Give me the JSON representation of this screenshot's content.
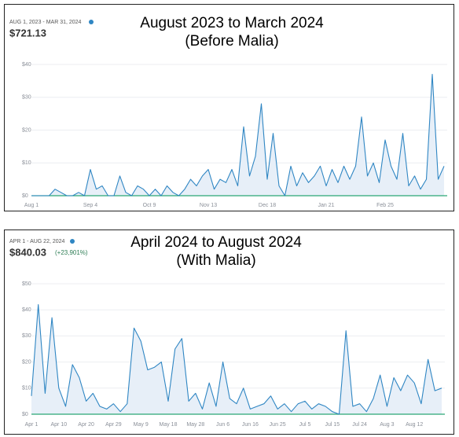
{
  "chart_data": [
    {
      "type": "area",
      "title": "August 2023 to March 2024",
      "subtitle": "(Before Malia)",
      "period": "AUG 1, 2023 - MAR 31, 2024",
      "total": "$721.13",
      "color": "#2f86c3",
      "grid": true,
      "categories": [
        "Aug 1",
        null,
        null,
        null,
        null,
        null,
        null,
        null,
        null,
        null,
        "Sep 4",
        null,
        null,
        null,
        null,
        null,
        null,
        null,
        null,
        null,
        "Oct 9",
        null,
        null,
        null,
        null,
        null,
        null,
        null,
        null,
        null,
        "Nov 13",
        null,
        null,
        null,
        null,
        null,
        null,
        null,
        null,
        null,
        "Dec 18",
        null,
        null,
        null,
        null,
        null,
        null,
        null,
        null,
        null,
        "Jan 21",
        null,
        null,
        null,
        null,
        null,
        null,
        null,
        null,
        null,
        "Feb 25",
        null,
        null,
        null,
        null,
        null,
        null,
        null,
        null,
        null,
        null
      ],
      "values": [
        0,
        0,
        0,
        0,
        2,
        1,
        0,
        0,
        1,
        0,
        8,
        2,
        3,
        0,
        0,
        6,
        1,
        0,
        3,
        2,
        0,
        2,
        0,
        3,
        1,
        0,
        2,
        5,
        3,
        6,
        8,
        2,
        5,
        4,
        8,
        3,
        21,
        6,
        12,
        28,
        5,
        19,
        3,
        0,
        9,
        3,
        7,
        4,
        6,
        9,
        3,
        8,
        4,
        9,
        5,
        9,
        24,
        6,
        10,
        4,
        17,
        9,
        5,
        19,
        3,
        6,
        2,
        5,
        37,
        5,
        9
      ],
      "ylim": [
        0,
        40
      ],
      "yticks": [
        {
          "value": 0,
          "label": "$0"
        },
        {
          "value": 10,
          "label": "$10"
        },
        {
          "value": 20,
          "label": "$20"
        },
        {
          "value": 30,
          "label": "$30"
        },
        {
          "value": 40,
          "label": "$40"
        }
      ]
    },
    {
      "type": "area",
      "title": "April 2024 to August 2024",
      "subtitle": "(With Malia)",
      "period": "APR 1 - AUG 22, 2024",
      "total": "$840.03",
      "change": "(+23,901%)",
      "color": "#2f86c3",
      "grid": true,
      "categories": [
        "Apr 1",
        null,
        null,
        null,
        "Apr 10",
        null,
        null,
        null,
        "Apr 20",
        null,
        null,
        null,
        "Apr 29",
        null,
        null,
        null,
        "May 9",
        null,
        null,
        null,
        "May 18",
        null,
        null,
        null,
        "May 28",
        null,
        null,
        null,
        "Jun 6",
        null,
        null,
        null,
        "Jun 16",
        null,
        null,
        null,
        "Jun 25",
        null,
        null,
        null,
        "Jul 5",
        null,
        null,
        null,
        "Jul 15",
        null,
        null,
        null,
        "Jul 24",
        null,
        null,
        null,
        "Aug 3",
        null,
        null,
        null,
        "Aug 12",
        null,
        null,
        null,
        null
      ],
      "values": [
        7,
        42,
        8,
        37,
        10,
        3,
        19,
        14,
        5,
        8,
        3,
        2,
        4,
        1,
        4,
        33,
        28,
        17,
        18,
        20,
        5,
        25,
        29,
        5,
        8,
        2,
        12,
        3,
        20,
        6,
        4,
        10,
        2,
        3,
        4,
        7,
        2,
        4,
        1,
        4,
        5,
        2,
        4,
        3,
        1,
        0,
        32,
        3,
        4,
        1,
        6,
        15,
        3,
        14,
        9,
        15,
        12,
        4,
        21,
        9,
        10
      ],
      "ylim": [
        0,
        50
      ],
      "yticks": [
        {
          "value": 0,
          "label": "$0"
        },
        {
          "value": 10,
          "label": "$10"
        },
        {
          "value": 20,
          "label": "$20"
        },
        {
          "value": 30,
          "label": "$30"
        },
        {
          "value": 40,
          "label": "$40"
        },
        {
          "value": 50,
          "label": "$50"
        }
      ]
    }
  ]
}
